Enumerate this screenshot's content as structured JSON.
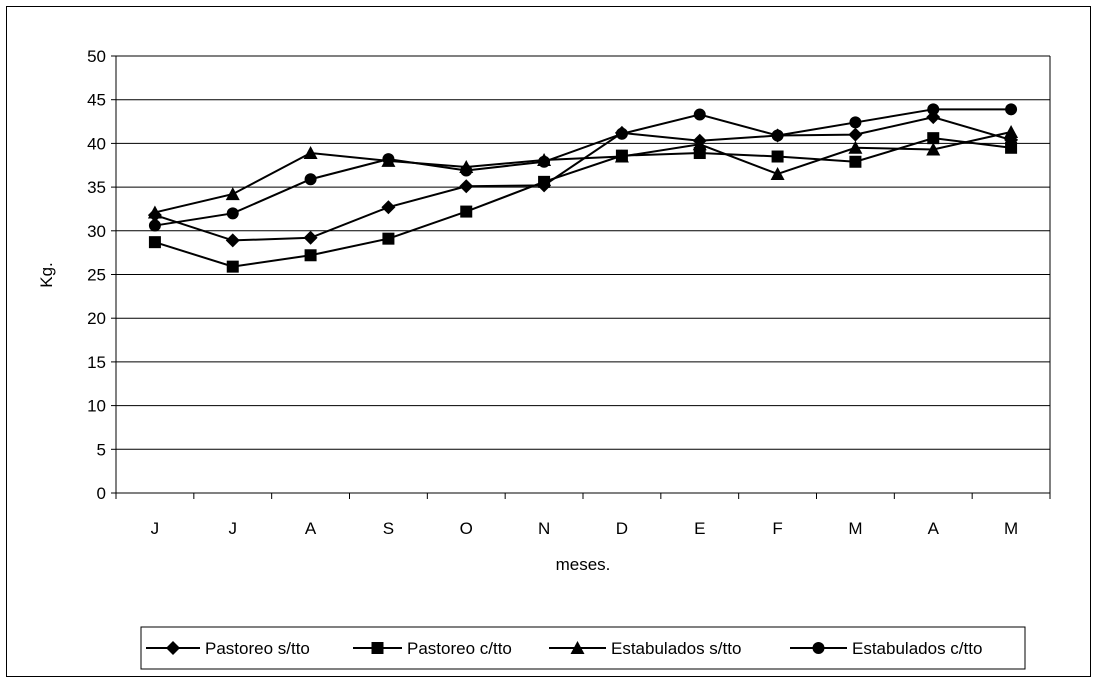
{
  "chart_data": {
    "type": "line",
    "title": "",
    "xlabel": "meses.",
    "ylabel": "Kg.",
    "categories": [
      "J",
      "J",
      "A",
      "S",
      "O",
      "N",
      "D",
      "E",
      "F",
      "M",
      "A",
      "M"
    ],
    "ylim": [
      0,
      50
    ],
    "yticks": [
      0,
      5,
      10,
      15,
      20,
      25,
      30,
      35,
      40,
      45,
      50
    ],
    "grid": true,
    "legend_position": "bottom",
    "series": [
      {
        "name": "Pastoreo s/tto",
        "marker": "diamond",
        "values": [
          31.8,
          28.9,
          29.2,
          32.7,
          35.1,
          35.2,
          41.2,
          40.3,
          40.9,
          41.0,
          43.0,
          40.4
        ]
      },
      {
        "name": "Pastoreo c/tto",
        "marker": "square",
        "values": [
          28.7,
          25.9,
          27.2,
          29.1,
          32.2,
          35.6,
          38.6,
          38.9,
          38.5,
          37.9,
          40.6,
          39.5
        ]
      },
      {
        "name": "Estabulados s/tto",
        "marker": "triangle",
        "values": [
          32.1,
          34.2,
          38.9,
          38.0,
          37.3,
          38.1,
          38.5,
          39.9,
          36.5,
          39.5,
          39.3,
          41.3
        ]
      },
      {
        "name": "Estabulados c/tto",
        "marker": "circle",
        "values": [
          30.6,
          32.0,
          35.9,
          38.2,
          36.9,
          37.9,
          41.1,
          43.3,
          40.9,
          42.4,
          43.9,
          43.9
        ]
      }
    ],
    "colors": {
      "line": "#000000",
      "grid": "#000000",
      "background": "#ffffff"
    }
  }
}
